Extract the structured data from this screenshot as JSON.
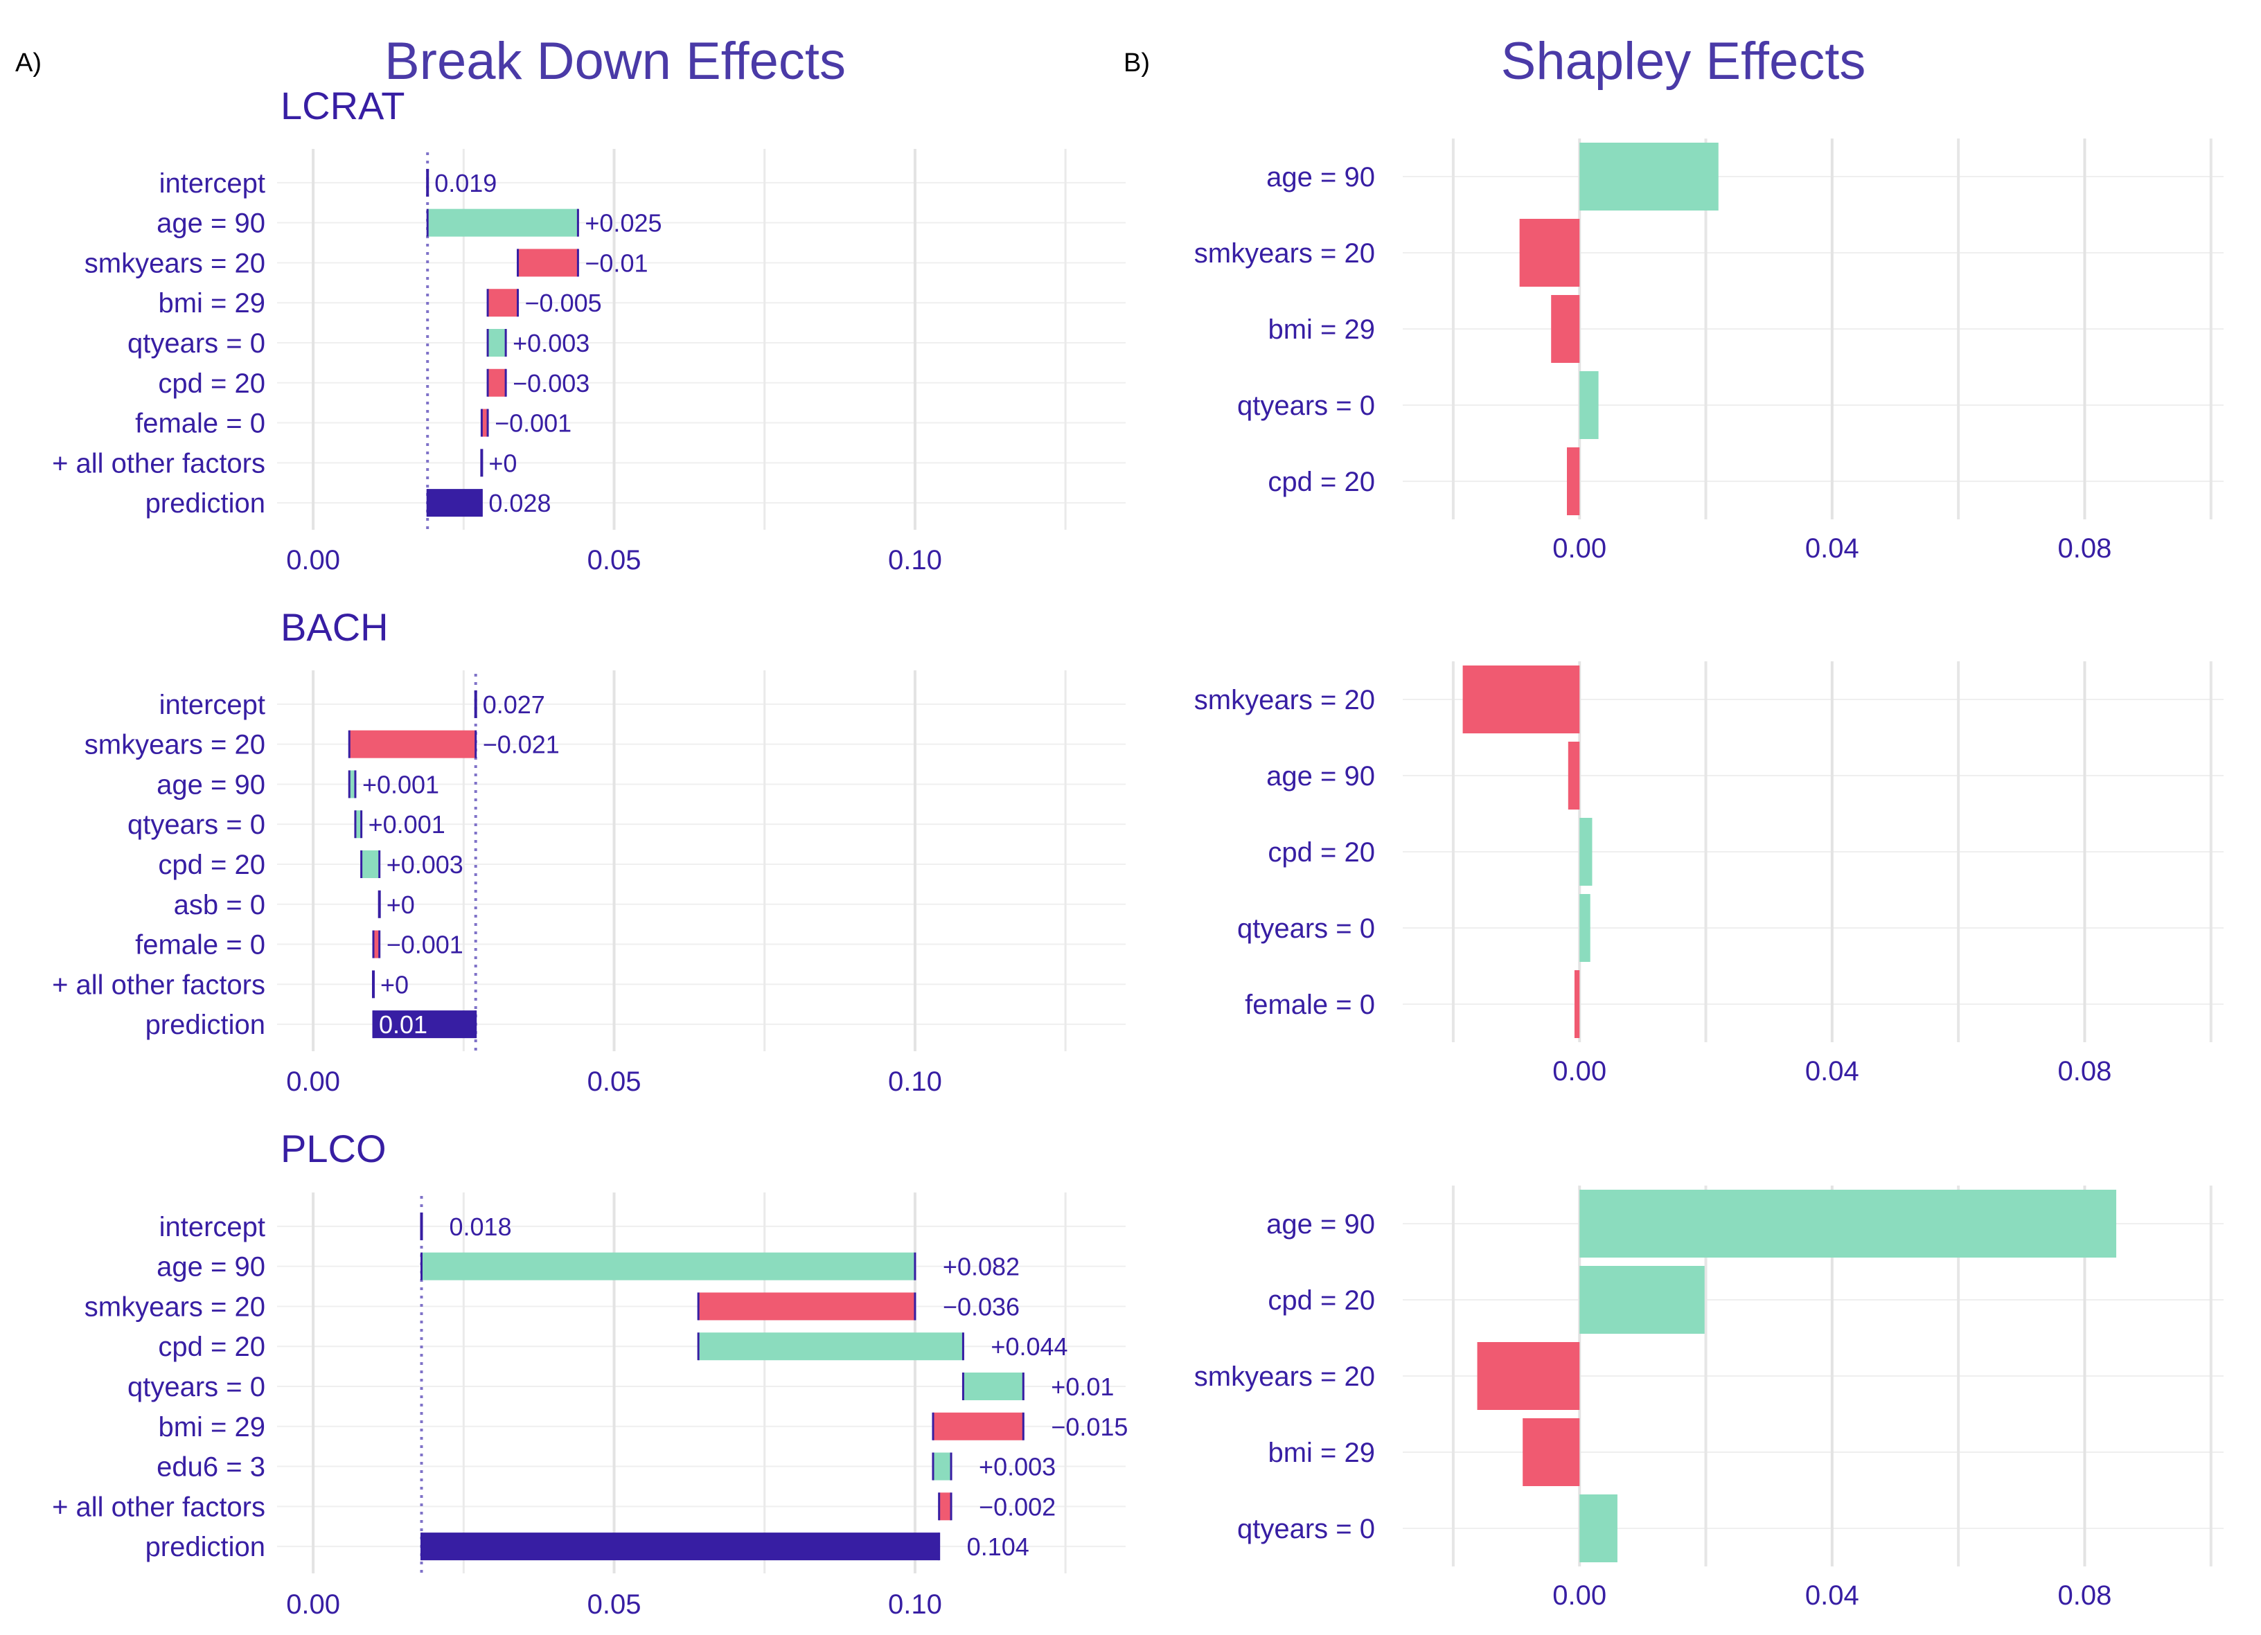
{
  "panel_letters": {
    "a": "A)",
    "b": "B)"
  },
  "titles": {
    "breakdown": "Break Down Effects",
    "shapley": "Shapley Effects"
  },
  "colors": {
    "positive": "#8BDCBE",
    "negative": "#F05A71",
    "prediction": "#371EA3",
    "text": "#371EA3",
    "title": "#4A3AA7",
    "grid": "#E6E6E6"
  },
  "chart_data": [
    {
      "type": "bar",
      "subtype": "waterfall",
      "title": "LCRAT",
      "xlim": [
        -0.006,
        0.135
      ],
      "xticks": [
        0.0,
        0.05,
        0.1
      ],
      "xtick_labels": [
        "0.00",
        "0.05",
        "0.10"
      ],
      "intercept_line": 0.019,
      "bars": [
        {
          "label": "intercept",
          "start": 0.019,
          "end": 0.019,
          "kind": "intercept",
          "text": "0.019"
        },
        {
          "label": "age = 90",
          "start": 0.019,
          "end": 0.044,
          "kind": "pos",
          "text": "+0.025"
        },
        {
          "label": "smkyears = 20",
          "start": 0.044,
          "end": 0.034,
          "kind": "neg",
          "text": "−0.01"
        },
        {
          "label": "bmi = 29",
          "start": 0.034,
          "end": 0.029,
          "kind": "neg",
          "text": "−0.005"
        },
        {
          "label": "qtyears = 0",
          "start": 0.029,
          "end": 0.032,
          "kind": "pos",
          "text": "+0.003"
        },
        {
          "label": "cpd = 20",
          "start": 0.032,
          "end": 0.029,
          "kind": "neg",
          "text": "−0.003"
        },
        {
          "label": "female = 0",
          "start": 0.029,
          "end": 0.028,
          "kind": "neg",
          "text": "−0.001"
        },
        {
          "label": "+ all other factors",
          "start": 0.028,
          "end": 0.028,
          "kind": "pos",
          "text": "+0"
        },
        {
          "label": "prediction",
          "start": 0.019,
          "end": 0.028,
          "kind": "prediction",
          "text": "0.028"
        }
      ]
    },
    {
      "type": "bar",
      "subtype": "waterfall",
      "title": "BACH",
      "xlim": [
        -0.006,
        0.135
      ],
      "xticks": [
        0.0,
        0.05,
        0.1
      ],
      "xtick_labels": [
        "0.00",
        "0.05",
        "0.10"
      ],
      "intercept_line": 0.027,
      "bars": [
        {
          "label": "intercept",
          "start": 0.027,
          "end": 0.027,
          "kind": "intercept",
          "text": "0.027"
        },
        {
          "label": "smkyears = 20",
          "start": 0.027,
          "end": 0.006,
          "kind": "neg",
          "text": "−0.021"
        },
        {
          "label": "age = 90",
          "start": 0.006,
          "end": 0.007,
          "kind": "pos",
          "text": "+0.001"
        },
        {
          "label": "qtyears = 0",
          "start": 0.007,
          "end": 0.008,
          "kind": "pos",
          "text": "+0.001"
        },
        {
          "label": "cpd = 20",
          "start": 0.008,
          "end": 0.011,
          "kind": "pos",
          "text": "+0.003"
        },
        {
          "label": "asb = 0",
          "start": 0.011,
          "end": 0.011,
          "kind": "pos",
          "text": "+0"
        },
        {
          "label": "female = 0",
          "start": 0.011,
          "end": 0.01,
          "kind": "neg",
          "text": "−0.001"
        },
        {
          "label": "+ all other factors",
          "start": 0.01,
          "end": 0.01,
          "kind": "pos",
          "text": "+0"
        },
        {
          "label": "prediction",
          "start": 0.027,
          "end": 0.01,
          "kind": "prediction",
          "text": "0.01"
        }
      ]
    },
    {
      "type": "bar",
      "subtype": "waterfall",
      "title": "PLCO",
      "xlim": [
        -0.006,
        0.135
      ],
      "xticks": [
        0.0,
        0.05,
        0.1
      ],
      "xtick_labels": [
        "0.00",
        "0.05",
        "0.10"
      ],
      "intercept_line": 0.018,
      "bars": [
        {
          "label": "intercept",
          "start": 0.018,
          "end": 0.018,
          "kind": "intercept",
          "text": "0.018"
        },
        {
          "label": "age = 90",
          "start": 0.018,
          "end": 0.1,
          "kind": "pos",
          "text": "+0.082"
        },
        {
          "label": "smkyears = 20",
          "start": 0.1,
          "end": 0.064,
          "kind": "neg",
          "text": "−0.036"
        },
        {
          "label": "cpd = 20",
          "start": 0.064,
          "end": 0.108,
          "kind": "pos",
          "text": "+0.044"
        },
        {
          "label": "qtyears = 0",
          "start": 0.108,
          "end": 0.118,
          "kind": "pos",
          "text": "+0.01"
        },
        {
          "label": "bmi = 29",
          "start": 0.118,
          "end": 0.103,
          "kind": "neg",
          "text": "−0.015"
        },
        {
          "label": "edu6 = 3",
          "start": 0.103,
          "end": 0.106,
          "kind": "pos",
          "text": "+0.003"
        },
        {
          "label": "+ all other factors",
          "start": 0.106,
          "end": 0.104,
          "kind": "neg",
          "text": "−0.002"
        },
        {
          "label": "prediction",
          "start": 0.018,
          "end": 0.104,
          "kind": "prediction",
          "text": "0.104"
        }
      ]
    },
    {
      "type": "bar",
      "subtype": "shapley",
      "title": "",
      "xlim": [
        -0.028,
        0.102
      ],
      "xticks": [
        0.0,
        0.04,
        0.08
      ],
      "xtick_labels": [
        "0.00",
        "0.04",
        "0.08"
      ],
      "bars": [
        {
          "label": "age = 90",
          "value": 0.022
        },
        {
          "label": "smkyears = 20",
          "value": -0.0095
        },
        {
          "label": "bmi = 29",
          "value": -0.0045
        },
        {
          "label": "qtyears = 0",
          "value": 0.003
        },
        {
          "label": "cpd = 20",
          "value": -0.002
        }
      ]
    },
    {
      "type": "bar",
      "subtype": "shapley",
      "title": "",
      "xlim": [
        -0.028,
        0.102
      ],
      "xticks": [
        0.0,
        0.04,
        0.08
      ],
      "xtick_labels": [
        "0.00",
        "0.04",
        "0.08"
      ],
      "bars": [
        {
          "label": "smkyears = 20",
          "value": -0.0185
        },
        {
          "label": "age = 90",
          "value": -0.0018
        },
        {
          "label": "cpd = 20",
          "value": 0.002
        },
        {
          "label": "qtyears = 0",
          "value": 0.0017
        },
        {
          "label": "female = 0",
          "value": -0.0008
        }
      ]
    },
    {
      "type": "bar",
      "subtype": "shapley",
      "title": "",
      "xlim": [
        -0.028,
        0.102
      ],
      "xticks": [
        0.0,
        0.04,
        0.08
      ],
      "xtick_labels": [
        "0.00",
        "0.04",
        "0.08"
      ],
      "bars": [
        {
          "label": "age = 90",
          "value": 0.085
        },
        {
          "label": "cpd = 20",
          "value": 0.0198
        },
        {
          "label": "smkyears = 20",
          "value": -0.0162
        },
        {
          "label": "bmi = 29",
          "value": -0.009
        },
        {
          "label": "qtyears = 0",
          "value": 0.006
        }
      ]
    }
  ]
}
